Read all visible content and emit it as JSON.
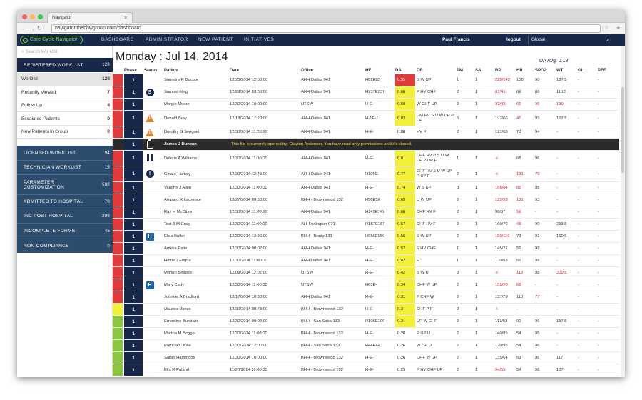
{
  "browser": {
    "tab_title": "Navigator",
    "url": "navigator.thebhwgroup.com/dashboard"
  },
  "appbar": {
    "logo_text": "Care Cycle Navigator",
    "nav": [
      "DASHBOARD",
      "ADMINISTRATOR",
      "NEW PATIENT",
      "INITIATIVES"
    ],
    "user": "Paul Francis",
    "logout": "logout",
    "scope": "Global"
  },
  "sidebar": {
    "search_placeholder": "Search Worklist",
    "registered": {
      "label": "REGISTERED WORKLIST",
      "count": "128"
    },
    "items": [
      {
        "label": "Worklist",
        "count": "128",
        "active": true
      },
      {
        "label": "Recently Viewed",
        "count": "7"
      },
      {
        "label": "Follow Up",
        "count": "8"
      },
      {
        "label": "Escalated Patients",
        "count": "0"
      },
      {
        "label": "New Patients in Group",
        "count": "0"
      }
    ],
    "sections": [
      {
        "label": "LICENSED WORKLIST",
        "count": "94"
      },
      {
        "label": "TECHNICIAN WORKLIST",
        "count": "15"
      },
      {
        "label": "PARAMETER CUSTOMIZATION",
        "count": "502"
      },
      {
        "label": "ADMITTED TO HOSPITAL",
        "count": "70"
      },
      {
        "label": "INC POST HOSPITAL",
        "count": "209"
      },
      {
        "label": "INCOMPLETE FORMS",
        "count": "46"
      },
      {
        "label": "NON-COMPLIANCE",
        "count": "0"
      }
    ]
  },
  "main": {
    "title": "Monday : Jul 14, 2014",
    "da_avg": "DA Avg: 0.18",
    "columns": [
      "Phase",
      "Status",
      "Patient",
      "Date",
      "Office",
      "HE",
      "DA",
      "DR",
      "PM",
      "SA",
      "BP",
      "HR",
      "SPO2",
      "WT",
      "GL",
      "PEF"
    ],
    "locked_message": "This file is currently opened by: Clayton Anderson. You have read-only permissions until it's closed.",
    "rows": [
      {
        "strip": "#e23b3b",
        "phase": "1",
        "status": "",
        "patient": "Saundra R Ducote",
        "date": "12/23/2014 12:08:00",
        "office": "AHH Dallas 041",
        "he": "H82E82",
        "da": "0.95",
        "da_bg": "#e23b3b",
        "da_fg": "#fff",
        "dr": "S W UP",
        "pm": "1",
        "sa": "1",
        "bp": "229/142",
        "bp_red": true,
        "hr": "108",
        "hr_red": false,
        "spo2": "90",
        "wt": "187.5",
        "gl": "-",
        "pef": "-"
      },
      {
        "strip": "#e23b3b",
        "phase": "1",
        "status": "S",
        "patient": "Samuel King",
        "date": "12/29/2014 09:30:00",
        "office": "AHH Dallas 041",
        "he": "H237E237",
        "da": "0.66",
        "da_bg": "#f3f03a",
        "da_fg": "#222",
        "dr": "P HV CHF",
        "pm": "2",
        "sa": "1",
        "bp": "81/41",
        "bp_red": true,
        "hr": "89",
        "hr_red": false,
        "spo2": "88",
        "wt": "110.5",
        "gl": "-",
        "pef": "-"
      },
      {
        "strip": "#e23b3b",
        "phase": "1",
        "status": "",
        "patient": "Margie Moore",
        "date": "12/30/2014 10:00:00",
        "office": "UTSW",
        "he": "H-E-",
        "da": "0.59",
        "da_bg": "#f3f03a",
        "da_fg": "#222",
        "dr": "W CHF UP",
        "pm": "2",
        "sa": "1",
        "bp": "92/43",
        "bp_red": true,
        "hr": "66",
        "hr_red": true,
        "spo2": "96",
        "wt": "139",
        "gl": "-",
        "pef": "-",
        "spo2_red": true,
        "wt_red": true
      },
      {
        "strip": "#e23b3b",
        "phase": "1",
        "status": "!",
        "patient": "Donald Bray",
        "date": "12/18/2014 17:20:00",
        "office": "AHH Dallas 041",
        "he": "H-1E-1",
        "da": "0.83",
        "da_bg": "#f3f03a",
        "da_fg": "#222",
        "dr": "DM HV S U W UP P UP",
        "pm": "5",
        "sa": "1",
        "bp": "173/66",
        "bp_red": false,
        "hr": "41",
        "hr_red": true,
        "spo2": "99",
        "wt": "162.5",
        "gl": "-",
        "pef": "-"
      },
      {
        "strip": "#e23b3b",
        "phase": "1",
        "status": "!",
        "patient": "Dorothy G Serignet",
        "date": "12/30/2014 11:20:00",
        "office": "AHH Dallas 041",
        "he": "H-E-",
        "da": "0.08",
        "da_bg": "",
        "da_fg": "#222",
        "dr": "HV F",
        "pm": "2",
        "sa": "1",
        "bp": "121/65",
        "bp_red": false,
        "hr": "73",
        "hr_red": false,
        "spo2": "94",
        "wt": "-",
        "gl": "-",
        "pef": "-"
      },
      {
        "locked": true,
        "phase": "1",
        "patient": "James J Duncan"
      },
      {
        "strip": "#e23b3b",
        "phase": "1",
        "status": "P",
        "patient": "Deloris A Williams",
        "date": "12/30/2014 11:30:00",
        "office": "AHH Dallas 041",
        "he": "H-E-",
        "da": "0.8",
        "da_bg": "#f3f03a",
        "da_fg": "#222",
        "dr": "CHF HV P S U W UP P UP F",
        "pm": "1",
        "sa": "1",
        "bp": "-/-",
        "bp_red": true,
        "hr": "68",
        "hr_red": false,
        "spo2": "96",
        "wt": "-",
        "gl": "-",
        "pef": "-"
      },
      {
        "strip": "#e23b3b",
        "phase": "1",
        "status": "T",
        "patient": "Gina A Harkey",
        "date": "12/30/2014 12:45:00",
        "office": "AHH Dallas 041",
        "he": "H105E-",
        "da": "0.77",
        "da_bg": "#f3f03a",
        "da_fg": "#222",
        "dr": "CHF HV S U W UP P UP F",
        "pm": "2",
        "sa": "1",
        "bp": "-/-",
        "bp_red": true,
        "hr": "131",
        "hr_red": true,
        "spo2": "79",
        "wt": "-",
        "gl": "-",
        "pef": "-",
        "spo2_red": true
      },
      {
        "strip": "#e23b3b",
        "phase": "1",
        "status": "",
        "patient": "Vaughn J Allen",
        "date": "12/30/2014 11:00:00",
        "office": "AHH Dallas 041",
        "he": "H-E-",
        "da": "0.74",
        "da_bg": "#f3f03a",
        "da_fg": "#222",
        "dr": "W S UP",
        "pm": "3",
        "sa": "1",
        "bp": "168/84",
        "bp_red": true,
        "hr": "65",
        "hr_red": true,
        "spo2": "98",
        "wt": "-",
        "gl": "-",
        "pef": "-"
      },
      {
        "strip": "#e23b3b",
        "phase": "1",
        "status": "",
        "patient": "Amparo R Laurence",
        "date": "12/27/2014 09:38:00",
        "office": "BHH - Brownwood 132",
        "he": "H50E50",
        "da": "0.69",
        "da_bg": "#f3f03a",
        "da_fg": "#222",
        "dr": "U W UP",
        "pm": "2",
        "sa": "1",
        "bp": "129/93",
        "bp_red": true,
        "hr": "131",
        "hr_red": true,
        "spo2": "93",
        "wt": "-",
        "gl": "-",
        "pef": "-"
      },
      {
        "strip": "#e23b3b",
        "phase": "1",
        "status": "",
        "patient": "Ray H McClure",
        "date": "12/30/2014 11:00:00",
        "office": "AHH Dallas 041",
        "he": "H149E149",
        "da": "0.66",
        "da_bg": "#f3f03a",
        "da_fg": "#222",
        "dr": "CHF HV F",
        "pm": "2",
        "sa": "1",
        "bp": "96/57",
        "bp_red": false,
        "hr": "59",
        "hr_red": true,
        "spo2": "-",
        "wt": "-",
        "gl": "-",
        "pef": "-"
      },
      {
        "strip": "#e23b3b",
        "phase": "1",
        "status": "",
        "patient": "Test 3 M Craig",
        "date": "12/30/2014 11:00:00",
        "office": "AHH Arlington 071",
        "he": "H187E187",
        "da": "0.57",
        "da_bg": "#f3f03a",
        "da_fg": "#222",
        "dr": "CHF HV F",
        "pm": "2",
        "sa": "1",
        "bp": "160/76",
        "bp_red": false,
        "hr": "48",
        "hr_red": true,
        "spo2": "90",
        "wt": "233.5",
        "gl": "-",
        "pef": "-"
      },
      {
        "strip": "#e23b3b",
        "phase": "1",
        "status": "H",
        "patient": "Elsia Butler",
        "date": "12/30/2014 13:36:00",
        "office": "BHH - Brady 131",
        "he": "H656E656",
        "da": "0.56",
        "da_bg": "#f3f03a",
        "da_fg": "#222",
        "dr": "S W UP",
        "pm": "2",
        "sa": "1",
        "bp": "180/119",
        "bp_red": true,
        "hr": "79",
        "hr_red": false,
        "spo2": "91",
        "wt": "160.5",
        "gl": "-",
        "pef": "-"
      },
      {
        "strip": "#e23b3b",
        "phase": "1",
        "status": "",
        "patient": "Amelia Estle",
        "date": "12/30/2014 08:02:00",
        "office": "AHH Dallas 041",
        "he": "H-E-",
        "da": "0.52",
        "da_bg": "#f3f03a",
        "da_fg": "#222",
        "dr": "F HV CHF",
        "pm": "1",
        "sa": "1",
        "bp": "145/71",
        "bp_red": false,
        "hr": "56",
        "hr_red": false,
        "spo2": "98",
        "wt": "-",
        "gl": "-",
        "pef": "-"
      },
      {
        "strip": "#e23b3b",
        "phase": "1",
        "status": "",
        "patient": "Hattie J Fuqua",
        "date": "12/30/2014 11:00:00",
        "office": "AHH Dallas 041",
        "he": "H-E-",
        "da": "0.42",
        "da_bg": "#f3f03a",
        "da_fg": "#222",
        "dr": "F",
        "pm": "1",
        "sa": "1",
        "bp": "130/68",
        "bp_red": false,
        "hr": "52",
        "hr_red": false,
        "spo2": "98",
        "wt": "-",
        "gl": "-",
        "pef": "-"
      },
      {
        "strip": "#e23b3b",
        "phase": "1",
        "status": "",
        "patient": "Marion Bridges",
        "date": "12/09/2014 12:07:00",
        "office": "UTSW",
        "he": "H-E-",
        "da": "0.42",
        "da_bg": "#f3f03a",
        "da_fg": "#222",
        "dr": "S W U",
        "pm": "3",
        "sa": "1",
        "bp": "-/-",
        "bp_red": true,
        "hr": "112",
        "hr_red": true,
        "spo2": "98",
        "wt": "209.5",
        "gl": "-",
        "pef": "-",
        "wt_red": true
      },
      {
        "strip": "#e23b3b",
        "phase": "1",
        "status": "H",
        "patient": "Mary Cady",
        "date": "12/30/2014 11:00:00",
        "office": "UTSW",
        "he": "H63E-",
        "da": "0.34",
        "da_bg": "#f3f03a",
        "da_fg": "#222",
        "dr": "CHF W UP",
        "pm": "2",
        "sa": "1",
        "bp": "155/20",
        "bp_red": true,
        "hr": "68",
        "hr_red": true,
        "spo2": "-",
        "wt": "-",
        "gl": "-",
        "pef": "-"
      },
      {
        "strip": "#e23b3b",
        "phase": "1",
        "status": "",
        "patient": "Johnnie A Bradford",
        "date": "12/17/2014 10:30:00",
        "office": "AHH Dallas 041",
        "he": "H-E-",
        "da": "0.31",
        "da_bg": "#f3f03a",
        "da_fg": "#222",
        "dr": "P CHF W",
        "pm": "2",
        "sa": "1",
        "bp": "137/79",
        "bp_red": false,
        "hr": "110",
        "hr_red": false,
        "spo2": "77",
        "wt": "-",
        "gl": "-",
        "pef": "-",
        "spo2_red": true
      },
      {
        "strip": "#f3f03a",
        "phase": "1",
        "status": "",
        "patient": "Maurice Jones",
        "date": "12/30/2014 08:43:00",
        "office": "BHH - Brownwood 132",
        "he": "H-E-",
        "da": "0.3",
        "da_bg": "#f3f03a",
        "da_fg": "#222",
        "dr": "CHF P F",
        "pm": "2",
        "sa": "1",
        "bp": "-/-",
        "bp_red": true,
        "hr": "-",
        "hr_red": false,
        "spo2": "-",
        "wt": "-",
        "gl": "-",
        "pef": "-"
      },
      {
        "strip": "#8cc63e",
        "phase": "1",
        "status": "",
        "patient": "Ernestine Burstain",
        "date": "12/30/2014 09:02:00",
        "office": "BHH - San Saba 133",
        "he": "H106E106",
        "da": "0.3",
        "da_bg": "#f3f03a",
        "da_fg": "#222",
        "dr": "UP W CHF",
        "pm": "2",
        "sa": "1",
        "bp": "117/53",
        "bp_red": false,
        "hr": "90",
        "hr_red": false,
        "spo2": "96",
        "wt": "157.5",
        "gl": "-",
        "pef": "-"
      },
      {
        "strip": "#8cc63e",
        "phase": "1",
        "status": "",
        "patient": "Martha M Bogget",
        "date": "12/30/2014 11:08:00",
        "office": "BHH - Brownwood 132",
        "he": "H-E-",
        "da": "0.28",
        "da_bg": "",
        "da_fg": "#222",
        "dr": "P UP U",
        "pm": "2",
        "sa": "1",
        "bp": "140/85",
        "bp_red": false,
        "hr": "54",
        "hr_red": false,
        "spo2": "95",
        "wt": "-",
        "gl": "-",
        "pef": "-"
      },
      {
        "strip": "#8cc63e",
        "phase": "1",
        "status": "",
        "patient": "Patricia C Kise",
        "date": "12/30/2014 12:00:00",
        "office": "BHH - San Saba 133",
        "he": "H44E44",
        "da": "0.26",
        "da_bg": "",
        "da_fg": "#222",
        "dr": "W UP U",
        "pm": "2",
        "sa": "1",
        "bp": "170/95",
        "bp_red": false,
        "hr": "54",
        "hr_red": false,
        "spo2": "96",
        "wt": "-",
        "gl": "-",
        "pef": "-"
      },
      {
        "strip": "#8cc63e",
        "phase": "1",
        "status": "",
        "patient": "Sarah Hammons",
        "date": "12/30/2014 10:00:00",
        "office": "BHH - Brownwood 132",
        "he": "H-E-",
        "da": "0.26",
        "da_bg": "",
        "da_fg": "#222",
        "dr": "CHF W UP",
        "pm": "2",
        "sa": "1",
        "bp": "135/64",
        "bp_red": false,
        "hr": "53",
        "hr_red": false,
        "spo2": "96",
        "wt": "117",
        "gl": "-",
        "pef": "-"
      },
      {
        "strip": "#8cc63e",
        "phase": "1",
        "status": "",
        "patient": "Ella R Poland",
        "date": "11/20/2014 16:00:00",
        "office": "BHH - Brownwood 132",
        "he": "H-E-",
        "da": "0.25",
        "da_bg": "",
        "da_fg": "#222",
        "dr": "P HV CHF UP",
        "pm": "2",
        "sa": "1",
        "bp": "94/59",
        "bp_red": true,
        "hr": "54",
        "hr_red": false,
        "spo2": "96",
        "wt": "107",
        "gl": "-",
        "pef": "-"
      }
    ]
  }
}
